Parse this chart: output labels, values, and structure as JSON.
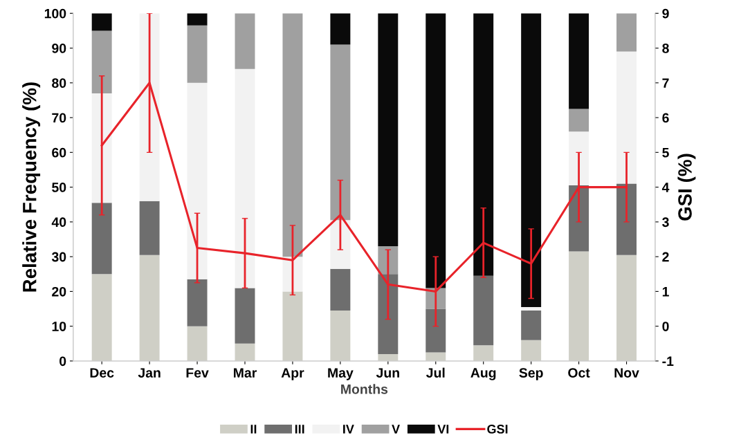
{
  "chart_data": {
    "type": "bar",
    "stacked": true,
    "xlabel": "Months",
    "ylabel": "Relative Frequency (%)",
    "y2label": "GSI (%)",
    "categories": [
      "Dec",
      "Jan",
      "Fev",
      "Mar",
      "Apr",
      "May",
      "Jun",
      "Jul",
      "Aug",
      "Sep",
      "Oct",
      "Nov"
    ],
    "ylim": [
      0,
      100
    ],
    "yticks": [
      0,
      10,
      20,
      30,
      40,
      50,
      60,
      70,
      80,
      90,
      100
    ],
    "y2lim": [
      -1,
      9
    ],
    "y2ticks": [
      -1,
      0,
      1,
      2,
      3,
      4,
      5,
      6,
      7,
      8,
      9
    ],
    "grid": false,
    "legend": "bottom",
    "series": [
      {
        "name": "II",
        "color": "#cfcfc6",
        "values": [
          25,
          30.5,
          10,
          5,
          20,
          14.5,
          2,
          2.5,
          4.5,
          6,
          31.5,
          30.5
        ]
      },
      {
        "name": "III",
        "color": "#6e6e6e",
        "values": [
          20.5,
          15.5,
          13.5,
          16,
          0,
          12,
          23,
          12.5,
          20,
          8.5,
          19,
          20.5
        ]
      },
      {
        "name": "IV",
        "color": "#f2f2f2",
        "values": [
          31.5,
          54,
          56.5,
          63,
          10,
          14,
          0,
          0,
          0,
          1,
          15.5,
          38
        ]
      },
      {
        "name": "V",
        "color": "#a0a0a0",
        "values": [
          18,
          0,
          16.5,
          16,
          70,
          50.5,
          8,
          6,
          0,
          0,
          6.5,
          11
        ]
      },
      {
        "name": "VI",
        "color": "#0a0a0a",
        "values": [
          5,
          0,
          3.5,
          0,
          0,
          9,
          67,
          79,
          75.5,
          84.5,
          27.5,
          0
        ]
      },
      {
        "name": "GSI",
        "type": "line",
        "axis": "y2",
        "color": "#e8232a",
        "marker": "none",
        "line_style": "solid",
        "values": [
          5.2,
          7.0,
          2.25,
          2.1,
          1.9,
          3.2,
          1.2,
          1.0,
          2.4,
          1.8,
          4.0,
          4.0
        ],
        "errors": [
          2,
          2,
          1,
          1,
          1,
          1,
          1,
          1,
          1,
          1,
          1,
          1
        ]
      }
    ]
  }
}
